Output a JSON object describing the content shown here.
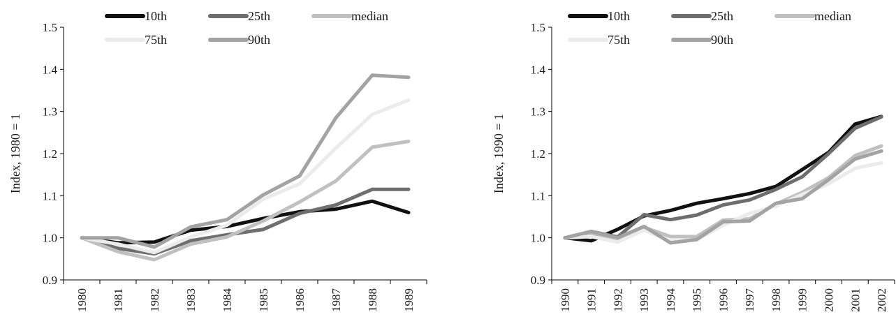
{
  "chart_data": [
    {
      "type": "line",
      "ylabel": "Index, 1980 = 1",
      "xlabel": "",
      "title": "",
      "ylim": [
        0.9,
        1.5
      ],
      "yticks": [
        "0.9",
        "1.0",
        "1.1",
        "1.2",
        "1.3",
        "1.4",
        "1.5"
      ],
      "categories": [
        "1980",
        "1981",
        "1982",
        "1983",
        "1984",
        "1985",
        "1986",
        "1987",
        "1988",
        "1989"
      ],
      "legend_position": "top",
      "series": [
        {
          "name": "10th",
          "color": "#111111",
          "values": [
            1.0,
            0.988,
            0.99,
            1.018,
            1.027,
            1.046,
            1.062,
            1.068,
            1.087,
            1.06
          ]
        },
        {
          "name": "25th",
          "color": "#6e6e6e",
          "values": [
            1.0,
            0.975,
            0.962,
            0.993,
            1.007,
            1.02,
            1.058,
            1.078,
            1.115,
            1.115
          ]
        },
        {
          "name": "median",
          "color": "#c0c0c0",
          "values": [
            1.0,
            0.967,
            0.948,
            0.985,
            1.002,
            1.04,
            1.085,
            1.135,
            1.215,
            1.229
          ]
        },
        {
          "name": "75th",
          "color": "#ebebeb",
          "values": [
            1.0,
            0.985,
            0.965,
            1.002,
            1.03,
            1.092,
            1.128,
            1.213,
            1.293,
            1.327
          ]
        },
        {
          "name": "90th",
          "color": "#a3a3a3",
          "values": [
            1.0,
            1.0,
            0.978,
            1.026,
            1.043,
            1.102,
            1.147,
            1.285,
            1.386,
            1.381
          ]
        }
      ]
    },
    {
      "type": "line",
      "ylabel": "Index, 1990 = 1",
      "xlabel": "",
      "title": "",
      "ylim": [
        0.9,
        1.5
      ],
      "yticks": [
        "0.9",
        "1.0",
        "1.1",
        "1.2",
        "1.3",
        "1.4",
        "1.5"
      ],
      "categories": [
        "1990",
        "1991",
        "1992",
        "1993",
        "1994",
        "1995",
        "1996",
        "1997",
        "1998",
        "1999",
        "2000",
        "2001",
        "2002"
      ],
      "legend_position": "top",
      "series": [
        {
          "name": "10th",
          "color": "#111111",
          "values": [
            1.0,
            0.993,
            1.02,
            1.052,
            1.065,
            1.082,
            1.093,
            1.105,
            1.122,
            1.162,
            1.203,
            1.27,
            1.288
          ]
        },
        {
          "name": "25th",
          "color": "#6e6e6e",
          "values": [
            1.0,
            1.015,
            1.002,
            1.055,
            1.043,
            1.054,
            1.078,
            1.09,
            1.115,
            1.145,
            1.2,
            1.26,
            1.287
          ]
        },
        {
          "name": "median",
          "color": "#c0c0c0",
          "values": [
            1.0,
            1.008,
            0.998,
            1.025,
            1.003,
            1.003,
            1.042,
            1.045,
            1.08,
            1.108,
            1.143,
            1.195,
            1.218
          ]
        },
        {
          "name": "75th",
          "color": "#ebebeb",
          "values": [
            1.0,
            1.003,
            0.99,
            1.018,
            0.993,
            0.995,
            1.03,
            1.058,
            1.075,
            1.103,
            1.128,
            1.165,
            1.178
          ]
        },
        {
          "name": "90th",
          "color": "#a3a3a3",
          "values": [
            1.0,
            1.015,
            1.0,
            1.027,
            0.988,
            0.996,
            1.038,
            1.04,
            1.082,
            1.093,
            1.138,
            1.187,
            1.206
          ]
        }
      ]
    }
  ]
}
